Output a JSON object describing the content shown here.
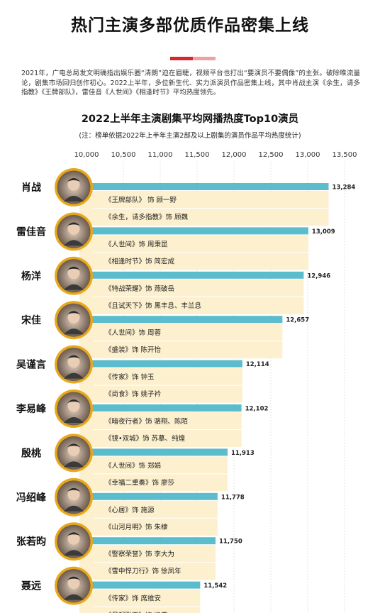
{
  "title": "热门主演多部优质作品密集上线",
  "intro": "2021年，广电总局发文明确指出娱乐圈“清朗”迫在眉睫，视频平台也打出“要演员不要偶像”的主张。破除唯流量论，剧集市场回归创作初心。2022上半年，多位新生代、实力派演员作品密集上线，其中肖战主演《余生，请多指教》《王牌部队》，雷佳音《人世间》《相逢时节》平均热度领先。",
  "colors": {
    "accent_red": "#d9262b",
    "accent_pink": "#f0a0a2",
    "bar_blue": "#5bbccc",
    "work_cream": "#fdf0cf",
    "avatar_ring": "#e8a81c"
  },
  "chart_data": {
    "type": "bar",
    "orientation": "horizontal",
    "title": "2022上半年主演剧集平均网播热度Top10演员",
    "note": "(注：榜单依据2022年上半年主演2部及以上剧集的演员作品平均热度统计)",
    "x_ticks": [
      10000,
      10500,
      11000,
      11500,
      12000,
      12500,
      13000,
      13500
    ],
    "xlim": [
      10000,
      13500
    ],
    "grid": true,
    "categories": [
      "肖战",
      "雷佳音",
      "杨洋",
      "宋佳",
      "吴谨言",
      "李易峰",
      "殷桃",
      "冯绍峰",
      "张若昀",
      "聂远"
    ],
    "values": [
      13284,
      13009,
      12946,
      12657,
      12114,
      12102,
      11913,
      11778,
      11750,
      11542
    ],
    "value_labels": [
      "13,284",
      "13,009",
      "12,946",
      "12,657",
      "12,114",
      "12,102",
      "11,913",
      "11,778",
      "11,750",
      "11,542"
    ],
    "works": [
      [
        "《王牌部队》 饰 顾一野",
        "《余生，请多指教》饰 顾魏"
      ],
      [
        "《人世间》饰 周秉昆",
        "《相逢时节》饰 简宏成"
      ],
      [
        "《特战荣耀》饰 燕破岳",
        "《且试天下》饰  黑丰息、丰兰息"
      ],
      [
        "《人世间》饰 周蓉",
        "《盛装》饰 陈开怡"
      ],
      [
        "《传家》饰 钟玉",
        "《尚食》饰 姚子衿"
      ],
      [
        "《暗夜行者》饰 骆翔、陈陌",
        "《镜•双城》饰 苏摹、纯煌"
      ],
      [
        "《人世间》饰 郑娟",
        "《幸福二重奏》饰 廖莎"
      ],
      [
        "《心居》饰 施源",
        "《山河月明》饰 朱棣"
      ],
      [
        "《警察荣誉》饰 李大为",
        "《雪中悍刀行》饰 徐凤年"
      ],
      [
        "《传家》饰 席维安",
        "《风起陇西》饰 冯膺"
      ]
    ]
  }
}
